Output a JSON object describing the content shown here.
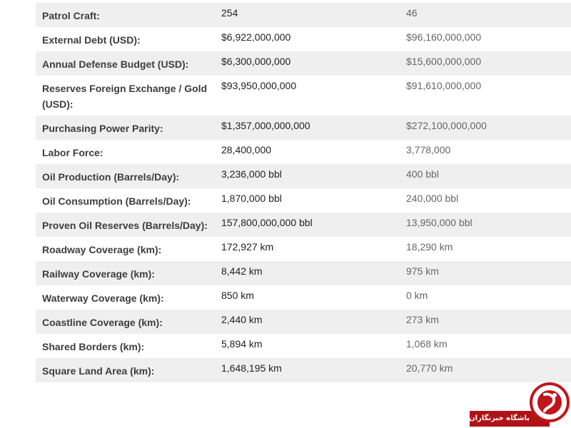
{
  "table": {
    "rows": [
      {
        "label": "Patrol Craft:",
        "a": "254",
        "b": "46",
        "striped": true
      },
      {
        "label": "External Debt (USD):",
        "a": "$6,922,000,000",
        "b": "$96,160,000,000",
        "striped": false
      },
      {
        "label": "Annual Defense Budget (USD):",
        "a": "$6,300,000,000",
        "b": "$15,600,000,000",
        "striped": true
      },
      {
        "label": "Reserves Foreign Exchange / Gold (USD):",
        "a": "$93,950,000,000",
        "b": "$91,610,000,000",
        "striped": false
      },
      {
        "label": "Purchasing Power Parity:",
        "a": "$1,357,000,000,000",
        "b": "$272,100,000,000",
        "striped": true
      },
      {
        "label": "Labor Force:",
        "a": "28,400,000",
        "b": "3,778,000",
        "striped": false
      },
      {
        "label": "Oil Production (Barrels/Day):",
        "a": "3,236,000 bbl",
        "b": "400 bbl",
        "striped": true
      },
      {
        "label": "Oil Consumption (Barrels/Day):",
        "a": "1,870,000 bbl",
        "b": "240,000 bbl",
        "striped": false
      },
      {
        "label": "Proven Oil Reserves (Barrels/Day):",
        "a": "157,800,000,000 bbl",
        "b": "13,950,000 bbl",
        "striped": true
      },
      {
        "label": "Roadway Coverage (km):",
        "a": "172,927 km",
        "b": "18,290 km",
        "striped": false
      },
      {
        "label": "Railway Coverage (km):",
        "a": "8,442 km",
        "b": "975 km",
        "striped": true
      },
      {
        "label": "Waterway Coverage (km):",
        "a": "850 km",
        "b": "0 km",
        "striped": false
      },
      {
        "label": "Coastline Coverage (km):",
        "a": "2,440 km",
        "b": "273 km",
        "striped": true
      },
      {
        "label": "Shared Borders (km):",
        "a": "5,894 km",
        "b": "1,068 km",
        "striped": false
      },
      {
        "label": "Square Land Area (km):",
        "a": "1,648,195 km",
        "b": "20,770 km",
        "striped": true
      }
    ]
  },
  "watermark": {
    "text": "باشگاه خبرنگاران",
    "color": "#c0151b"
  },
  "colors": {
    "stripe": "#efefef",
    "label": "#3d3d3d",
    "value_a": "#222222",
    "value_b": "#666666"
  }
}
